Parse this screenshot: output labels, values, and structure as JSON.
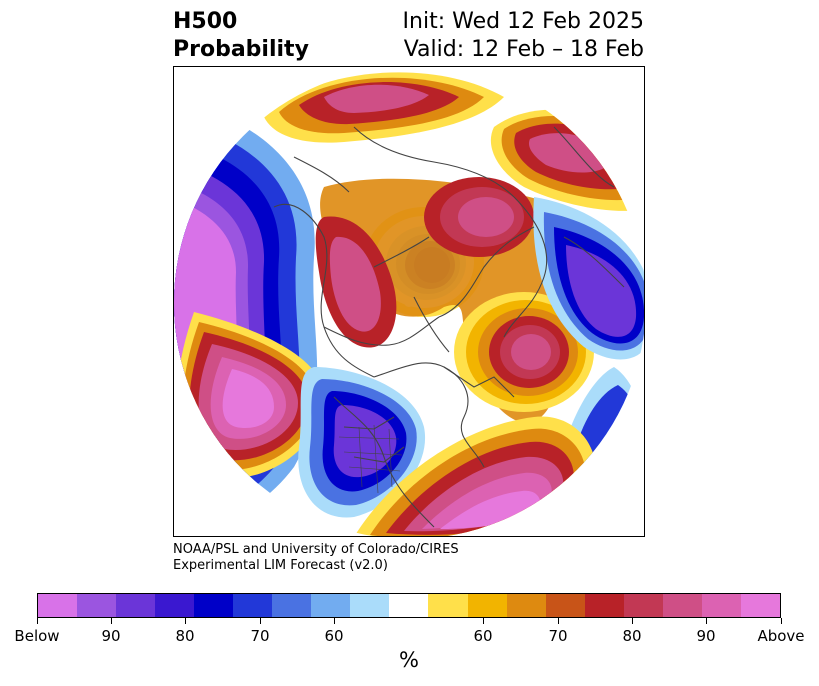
{
  "title": {
    "left_line1": "H500",
    "left_line2": "Probability",
    "right_line1": "Init: Wed 12 Feb 2025",
    "right_line2": "Valid: 12 Feb – 18 Feb"
  },
  "credit": {
    "line1": "NOAA/PSL and University of Colorado/CIRES",
    "line2": "Experimental LIM Forecast (v2.0)"
  },
  "map": {
    "projection": "polar stereographic, Northern Hemisphere",
    "features": [
      "probability-below-regions",
      "probability-above-regions",
      "coastlines",
      "country-borders",
      "state-borders"
    ]
  },
  "colorbar": {
    "unit_label": "%",
    "colors": [
      "#d872e8",
      "#9b55e0",
      "#6b35d8",
      "#3a18d0",
      "#0000c8",
      "#2238d8",
      "#4a72e2",
      "#72acf0",
      "#aadcfa",
      "#ffffff",
      "#ffe04a",
      "#f2b400",
      "#de8a10",
      "#c85418",
      "#b82228",
      "#c23854",
      "#cf4f86",
      "#dc62b2",
      "#e678dc"
    ],
    "tick_labels": [
      "Below",
      "90",
      "80",
      "70",
      "60",
      "60",
      "70",
      "80",
      "90",
      "Above"
    ]
  },
  "palette": {
    "below_deep": "#d872e8",
    "below_strong": "#6b35d8",
    "below_blue": "#0000c8",
    "below_light": "#72acf0",
    "neutral": "#ffffff",
    "above_light": "#ffe04a",
    "above_mid": "#de8a10",
    "above_red": "#b82228",
    "above_deep": "#e678dc",
    "border_line": "#444444"
  }
}
